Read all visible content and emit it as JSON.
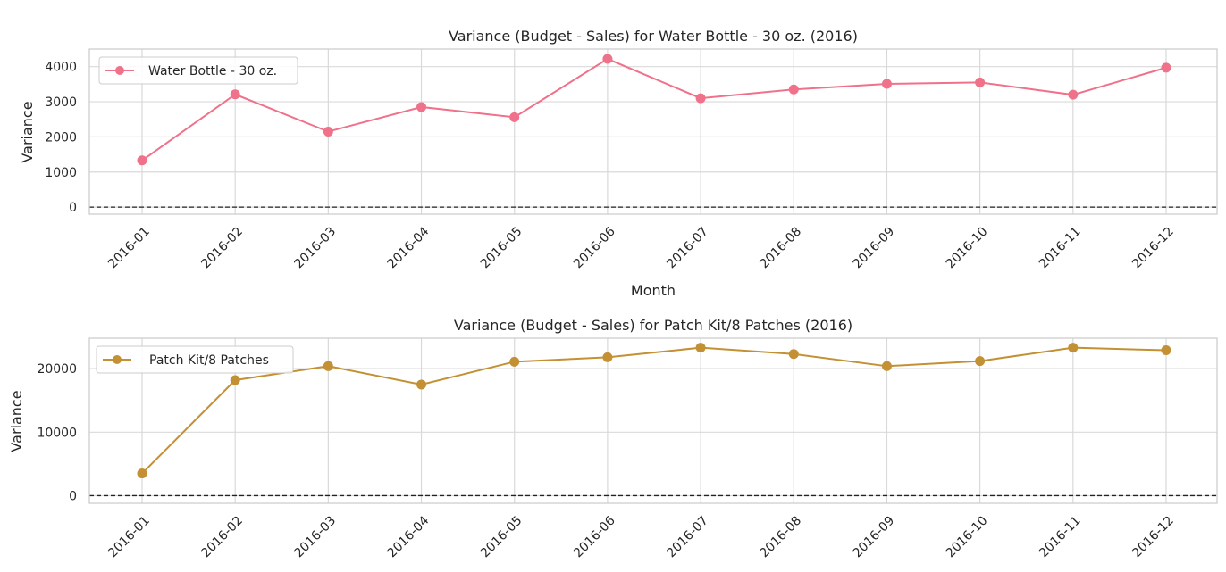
{
  "chart_data": [
    {
      "type": "line",
      "title": "Variance (Budget - Sales) for Water Bottle - 30 oz. (2016)",
      "xlabel": "Month",
      "ylabel": "Variance",
      "categories": [
        "2016-01",
        "2016-02",
        "2016-03",
        "2016-04",
        "2016-05",
        "2016-06",
        "2016-07",
        "2016-08",
        "2016-09",
        "2016-10",
        "2016-11",
        "2016-12"
      ],
      "series": [
        {
          "name": "Water Bottle - 30 oz.",
          "color": "#f0718a",
          "values": [
            1330,
            3210,
            2150,
            2850,
            2560,
            4220,
            3100,
            3350,
            3510,
            3550,
            3200,
            3970
          ]
        }
      ],
      "ylim": [
        -200,
        4500
      ],
      "yticks": [
        0,
        1000,
        2000,
        3000,
        4000
      ],
      "reference_line": 0,
      "grid": true,
      "legend_position": "upper left"
    },
    {
      "type": "line",
      "title": "Variance (Budget - Sales) for Patch Kit/8 Patches (2016)",
      "xlabel": "",
      "ylabel": "Variance",
      "categories": [
        "2016-01",
        "2016-02",
        "2016-03",
        "2016-04",
        "2016-05",
        "2016-06",
        "2016-07",
        "2016-08",
        "2016-09",
        "2016-10",
        "2016-11",
        "2016-12"
      ],
      "series": [
        {
          "name": "Patch Kit/8 Patches",
          "color": "#c49034",
          "values": [
            3500,
            18200,
            20400,
            17500,
            21100,
            21800,
            23300,
            22300,
            20400,
            21200,
            23300,
            22900
          ]
        }
      ],
      "ylim": [
        -1200,
        24800
      ],
      "yticks": [
        0,
        10000,
        20000
      ],
      "reference_line": 0,
      "grid": true,
      "legend_position": "upper left"
    }
  ]
}
